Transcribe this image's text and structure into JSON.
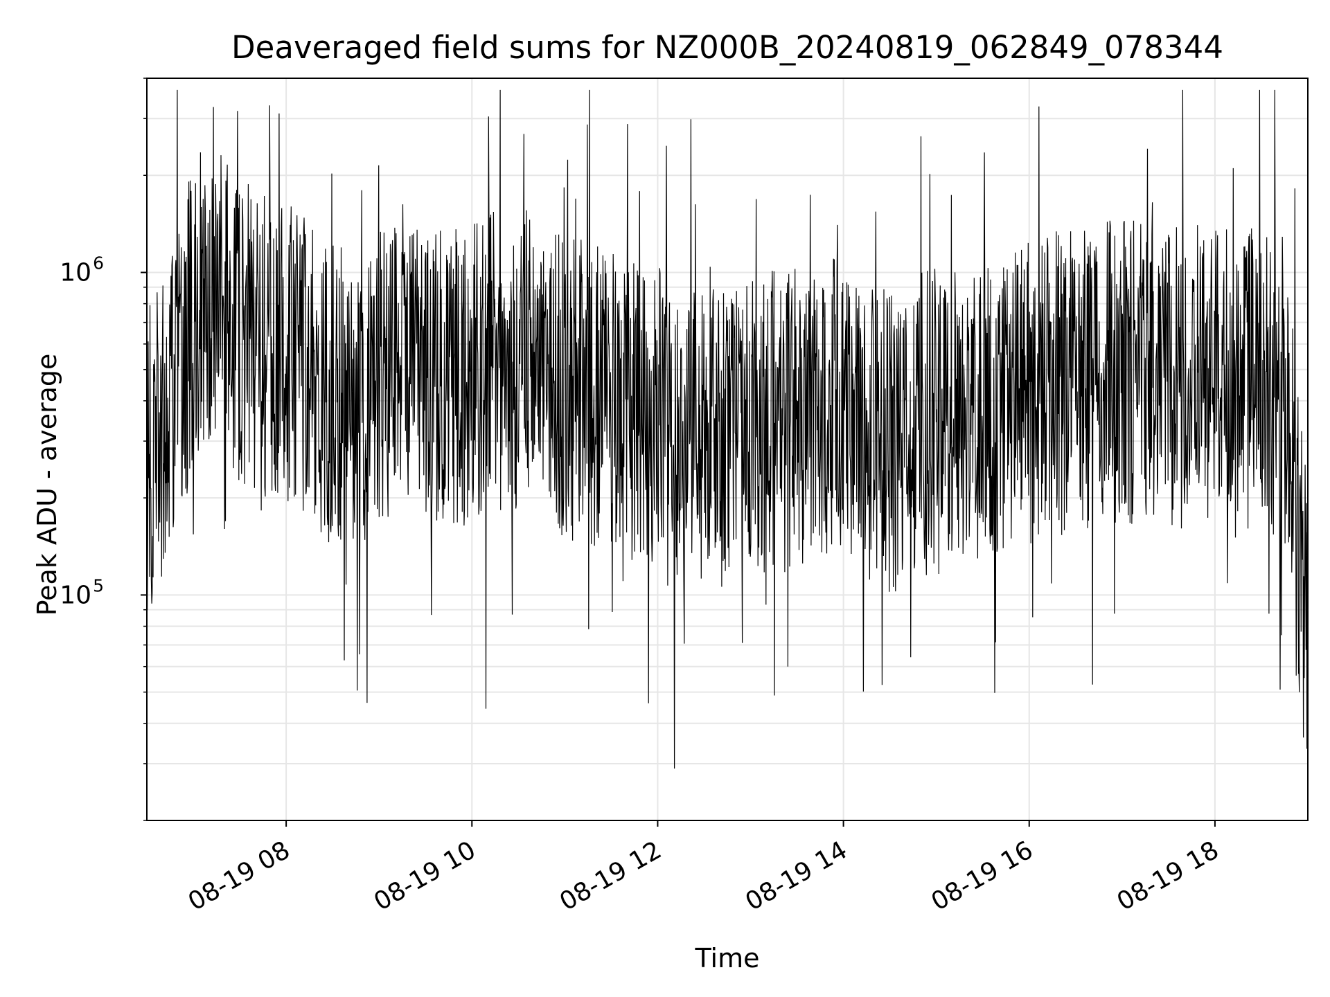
{
  "chart_data": {
    "type": "line",
    "title": "Deaveraged field sums for NZ000B_20240819_062849_078344",
    "xlabel": "Time",
    "ylabel": "Peak ADU - average",
    "yscale": "log",
    "ylim": [
      20000,
      4000000
    ],
    "xlim": [
      "2024-08-19 06:30",
      "2024-08-19 19:00"
    ],
    "x_ticks": [
      "08-19 08",
      "08-19 10",
      "08-19 12",
      "08-19 14",
      "08-19 16",
      "08-19 18"
    ],
    "y_ticks": [
      {
        "base": "10",
        "exp": "5",
        "value": 100000
      },
      {
        "base": "10",
        "exp": "6",
        "value": 1000000
      }
    ],
    "grid": true,
    "line_color": "#000000",
    "series": [
      {
        "x": [
          "2024-08-19 06:30",
          "2024-08-19 06:45",
          "2024-08-19 07:00",
          "2024-08-19 07:15",
          "2024-08-19 07:30",
          "2024-08-19 07:45",
          "2024-08-19 08:00",
          "2024-08-19 08:15",
          "2024-08-19 08:30",
          "2024-08-19 08:45",
          "2024-08-19 09:00",
          "2024-08-19 09:15",
          "2024-08-19 09:30",
          "2024-08-19 09:45",
          "2024-08-19 10:00",
          "2024-08-19 10:15",
          "2024-08-19 10:30",
          "2024-08-19 10:45",
          "2024-08-19 11:00",
          "2024-08-19 11:15",
          "2024-08-19 11:30",
          "2024-08-19 11:45",
          "2024-08-19 12:00",
          "2024-08-19 12:15",
          "2024-08-19 12:30",
          "2024-08-19 12:45",
          "2024-08-19 13:00",
          "2024-08-19 13:15",
          "2024-08-19 13:30",
          "2024-08-19 13:45",
          "2024-08-19 14:00",
          "2024-08-19 14:15",
          "2024-08-19 14:30",
          "2024-08-19 14:45",
          "2024-08-19 15:00",
          "2024-08-19 15:15",
          "2024-08-19 15:30",
          "2024-08-19 15:45",
          "2024-08-19 16:00",
          "2024-08-19 16:15",
          "2024-08-19 16:30",
          "2024-08-19 16:45",
          "2024-08-19 17:00",
          "2024-08-19 17:15",
          "2024-08-19 17:30",
          "2024-08-19 17:45",
          "2024-08-19 18:00",
          "2024-08-19 18:15",
          "2024-08-19 18:30",
          "2024-08-19 18:45",
          "2024-08-19 19:00"
        ],
        "values": [
          250000,
          400000,
          750000,
          900000,
          650000,
          600000,
          550000,
          500000,
          420000,
          400000,
          500000,
          550000,
          480000,
          450000,
          500000,
          520000,
          550000,
          480000,
          430000,
          420000,
          400000,
          380000,
          370000,
          330000,
          300000,
          310000,
          330000,
          340000,
          350000,
          360000,
          380000,
          330000,
          300000,
          320000,
          360000,
          330000,
          350000,
          380000,
          420000,
          450000,
          470000,
          480000,
          500000,
          470000,
          460000,
          470000,
          480000,
          460000,
          500000,
          420000,
          70000
        ]
      }
    ]
  }
}
